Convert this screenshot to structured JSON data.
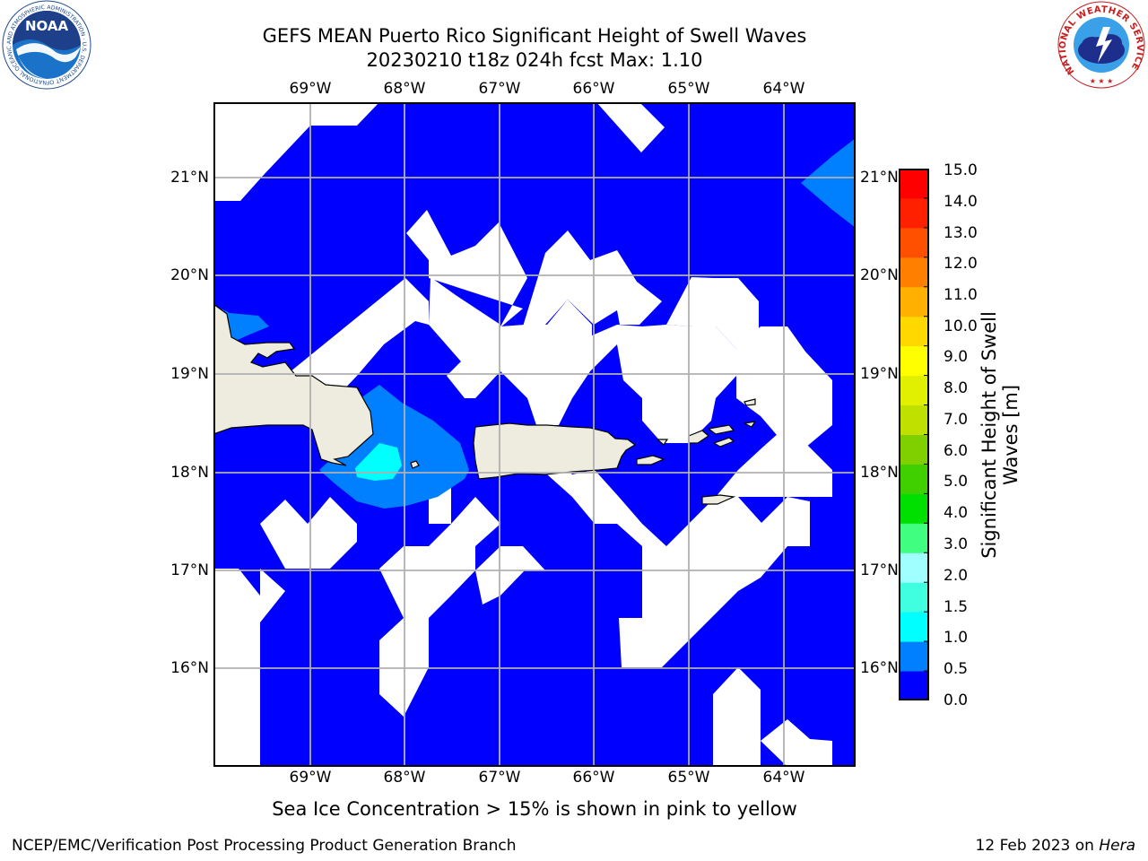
{
  "header": {
    "title_line1": "GEFS MEAN Puerto Rico Significant Height of Swell Waves",
    "title_line2": "20230210 t18z 024h fcst   Max: 1.10"
  },
  "map": {
    "lon_labels": [
      "69°W",
      "68°W",
      "67°W",
      "66°W",
      "65°W",
      "64°W"
    ],
    "lat_labels": [
      "21°N",
      "20°N",
      "19°N",
      "18°N",
      "17°N",
      "16°N"
    ],
    "land_color": "#eeecdf",
    "grid_color": "#b0b0b0"
  },
  "colorbar": {
    "ticks": [
      "15.0",
      "14.0",
      "13.0",
      "12.0",
      "11.0",
      "10.0",
      "9.0",
      "8.0",
      "7.0",
      "6.0",
      "5.0",
      "4.0",
      "3.0",
      "2.0",
      "1.5",
      "1.0",
      "0.5",
      "0.0"
    ],
    "colors": [
      "#0000ff",
      "#0080ff",
      "#00ffff",
      "#40ffe0",
      "#a0ffff",
      "#40ff80",
      "#00e000",
      "#40d000",
      "#80d000",
      "#c0e000",
      "#e0f000",
      "#ffff00",
      "#ffd800",
      "#ffb000",
      "#ff8000",
      "#ff5000",
      "#ff2000",
      "#ff0000"
    ],
    "label_line1": "Significant Height of Swell",
    "label_line2": "Waves [m]"
  },
  "ice_note": "Sea Ice Concentration > 15% is shown in pink to yellow",
  "footer": {
    "left": "NCEP/EMC/Verification Post Processing Product Generation Branch",
    "right_date": "12 Feb 2023 on ",
    "right_host": "Hera"
  },
  "logos": {
    "noaa_text": "NOAA",
    "noaa_ring": "NATIONAL OCEANIC AND ATMOSPHERIC ADMINISTRATION · U.S. DEPARTMENT OF COMMERCE",
    "nws_ring": "NATIONAL WEATHER SERVICE"
  }
}
